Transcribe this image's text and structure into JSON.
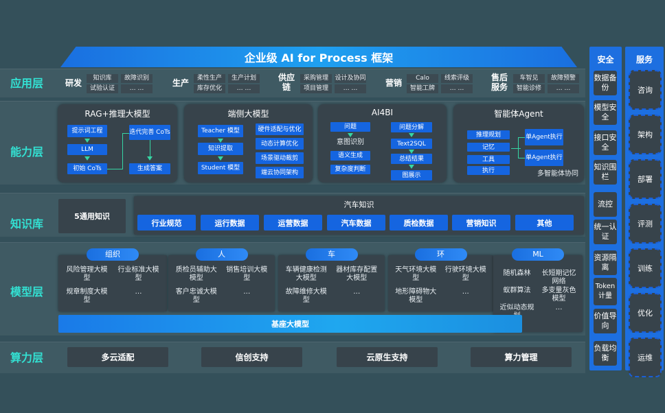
{
  "title": "企业级 AI for Process 框架",
  "layers": {
    "app": "应用层",
    "capability": "能力层",
    "knowledge": "知识库",
    "model": "模型层",
    "compute": "算力层"
  },
  "app_groups": [
    {
      "name": "研发",
      "items": [
        "知识库",
        "故障识别",
        "试验认证",
        "… …"
      ]
    },
    {
      "name": "生产",
      "items": [
        "柔性生产",
        "生产计划",
        "库存优化",
        "… …"
      ]
    },
    {
      "name": "供应链",
      "items": [
        "采购管理",
        "设计及协同",
        "项目管理",
        "… …"
      ]
    },
    {
      "name": "营销",
      "items": [
        "Calo",
        "线索评级",
        "智能工牌",
        "… …"
      ]
    },
    {
      "name": "售后服务",
      "items": [
        "车智见",
        "故障预警",
        "智能诊修",
        "… …"
      ]
    }
  ],
  "capability": {
    "rag": {
      "title": "RAG+推理大模型",
      "steps": [
        "提示词工程",
        "LLM",
        "初始 CoTs"
      ],
      "right": [
        "迭代完善 CoTs",
        "生成答案"
      ]
    },
    "edge": {
      "title": "端侧大模型",
      "steps": [
        "Teacher 模型",
        "知识提取",
        "Student 模型"
      ],
      "right": [
        "硬件适配与优化",
        "动态计算优化",
        "场景驱动裁剪",
        "端云协同架构"
      ]
    },
    "ai4bi": {
      "title": "AI4BI",
      "left": [
        "问题",
        "意图识别",
        "语义生成",
        "复杂度判断"
      ],
      "right": [
        "问题分解",
        "Text2SQL",
        "总结结果",
        "图展示"
      ]
    },
    "agent": {
      "title": "智能体Agent",
      "left": [
        "推理规划",
        "记忆",
        "工具",
        "执行"
      ],
      "right": [
        "单Agent执行",
        "单Agent执行"
      ],
      "caption": "多智能体协同"
    }
  },
  "knowledge": {
    "general": "5通用知识",
    "auto_title": "汽车知识",
    "chips": [
      "行业规范",
      "运行数据",
      "运营数据",
      "汽车数据",
      "质检数据",
      "营销知识",
      "其他"
    ]
  },
  "model": {
    "groups": [
      {
        "name": "组织",
        "items": [
          "风险管理大模型",
          "行业标准大模型",
          "规章制度大模型",
          "…"
        ]
      },
      {
        "name": "人",
        "items": [
          "质检员辅助大模型",
          "销售培训大模型",
          "客户忠诚大模型",
          "…"
        ]
      },
      {
        "name": "车",
        "items": [
          "车辆健康检测大模型",
          "器材库存配置大模型",
          "故障维修大模型",
          "…"
        ]
      },
      {
        "name": "环",
        "items": [
          "天气环境大模型",
          "行驶环境大模型",
          "地形障碍物大模型",
          "…"
        ]
      },
      {
        "name": "ML",
        "items": [
          "随机森林",
          "长短期记忆网络",
          "蚁群算法",
          "多变量灰色模型",
          "近似动态规划",
          "…"
        ]
      }
    ],
    "base": "基座大模型"
  },
  "compute": [
    "多云适配",
    "信创支持",
    "云原生支持",
    "算力管理"
  ],
  "security": {
    "title": "安全",
    "items": [
      "数据备份",
      "模型安全",
      "接口安全",
      "知识围栏",
      "流控",
      "统一认证",
      "资源隔离",
      "Token计量",
      "价值导向",
      "负载均衡"
    ]
  },
  "service": {
    "title": "服务",
    "items": [
      "咨询",
      "架构",
      "部署",
      "评测",
      "训练",
      "优化",
      "运维"
    ]
  },
  "colors": {
    "background": "#34505a",
    "accent_blue": "#1565e0",
    "layer_label": "#33e0d2",
    "arrow": "#36d6a4"
  }
}
